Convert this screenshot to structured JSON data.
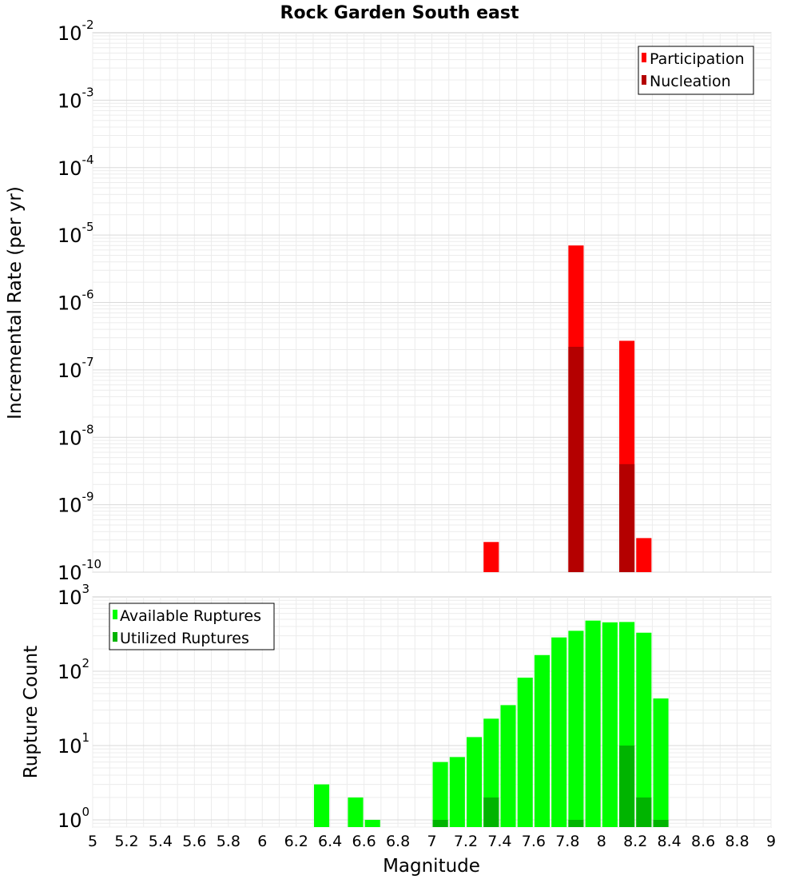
{
  "title": "Rock Garden South east",
  "chart_data": [
    {
      "type": "bar",
      "ylabel": "Incremental Rate (per yr)",
      "yscale": "log",
      "ylim": [
        1e-10,
        0.01
      ],
      "xlim": [
        5,
        9
      ],
      "grid": true,
      "legend_position": "top-right",
      "x": [
        7.35,
        7.85,
        8.15,
        8.25
      ],
      "series": [
        {
          "name": "Participation",
          "color": "#ff0000",
          "values": [
            2.8e-10,
            7e-06,
            2.7e-07,
            3.2e-10
          ]
        },
        {
          "name": "Nucleation",
          "color": "#b40000",
          "values": [
            0,
            2.2e-07,
            4e-09,
            0
          ]
        }
      ],
      "yticks": [
        {
          "base": "10",
          "exp": "-10"
        },
        {
          "base": "10",
          "exp": "-9"
        },
        {
          "base": "10",
          "exp": "-8"
        },
        {
          "base": "10",
          "exp": "-7"
        },
        {
          "base": "10",
          "exp": "-6"
        },
        {
          "base": "10",
          "exp": "-5"
        },
        {
          "base": "10",
          "exp": "-4"
        },
        {
          "base": "10",
          "exp": "-3"
        },
        {
          "base": "10",
          "exp": "-2"
        }
      ]
    },
    {
      "type": "bar",
      "ylabel": "Rupture Count",
      "xlabel": "Magnitude",
      "yscale": "log",
      "ylim": [
        0.8,
        1000
      ],
      "xlim": [
        5,
        9
      ],
      "grid": true,
      "legend_position": "top-left",
      "x": [
        6.35,
        6.55,
        6.65,
        7.05,
        7.15,
        7.25,
        7.35,
        7.45,
        7.55,
        7.65,
        7.75,
        7.85,
        7.95,
        8.05,
        8.15,
        8.25,
        8.35
      ],
      "series": [
        {
          "name": "Available Ruptures",
          "color": "#00ff00",
          "values": [
            3,
            2,
            1,
            6,
            7,
            13,
            23,
            35,
            82,
            165,
            285,
            350,
            480,
            455,
            460,
            330,
            43
          ]
        },
        {
          "name": "Utilized Ruptures",
          "color": "#00b400",
          "values": [
            0,
            0,
            0,
            1,
            0,
            0,
            2,
            0,
            0,
            0,
            0,
            1,
            0,
            0,
            10,
            2,
            1
          ]
        }
      ],
      "yticks": [
        {
          "base": "10",
          "exp": "0"
        },
        {
          "base": "10",
          "exp": "1"
        },
        {
          "base": "10",
          "exp": "2"
        },
        {
          "base": "10",
          "exp": "3"
        }
      ],
      "xticks": [
        "5",
        "5.2",
        "5.4",
        "5.6",
        "5.8",
        "6",
        "6.2",
        "6.4",
        "6.6",
        "6.8",
        "7",
        "7.2",
        "7.4",
        "7.6",
        "7.8",
        "8",
        "8.2",
        "8.4",
        "8.6",
        "8.8",
        "9"
      ]
    }
  ]
}
